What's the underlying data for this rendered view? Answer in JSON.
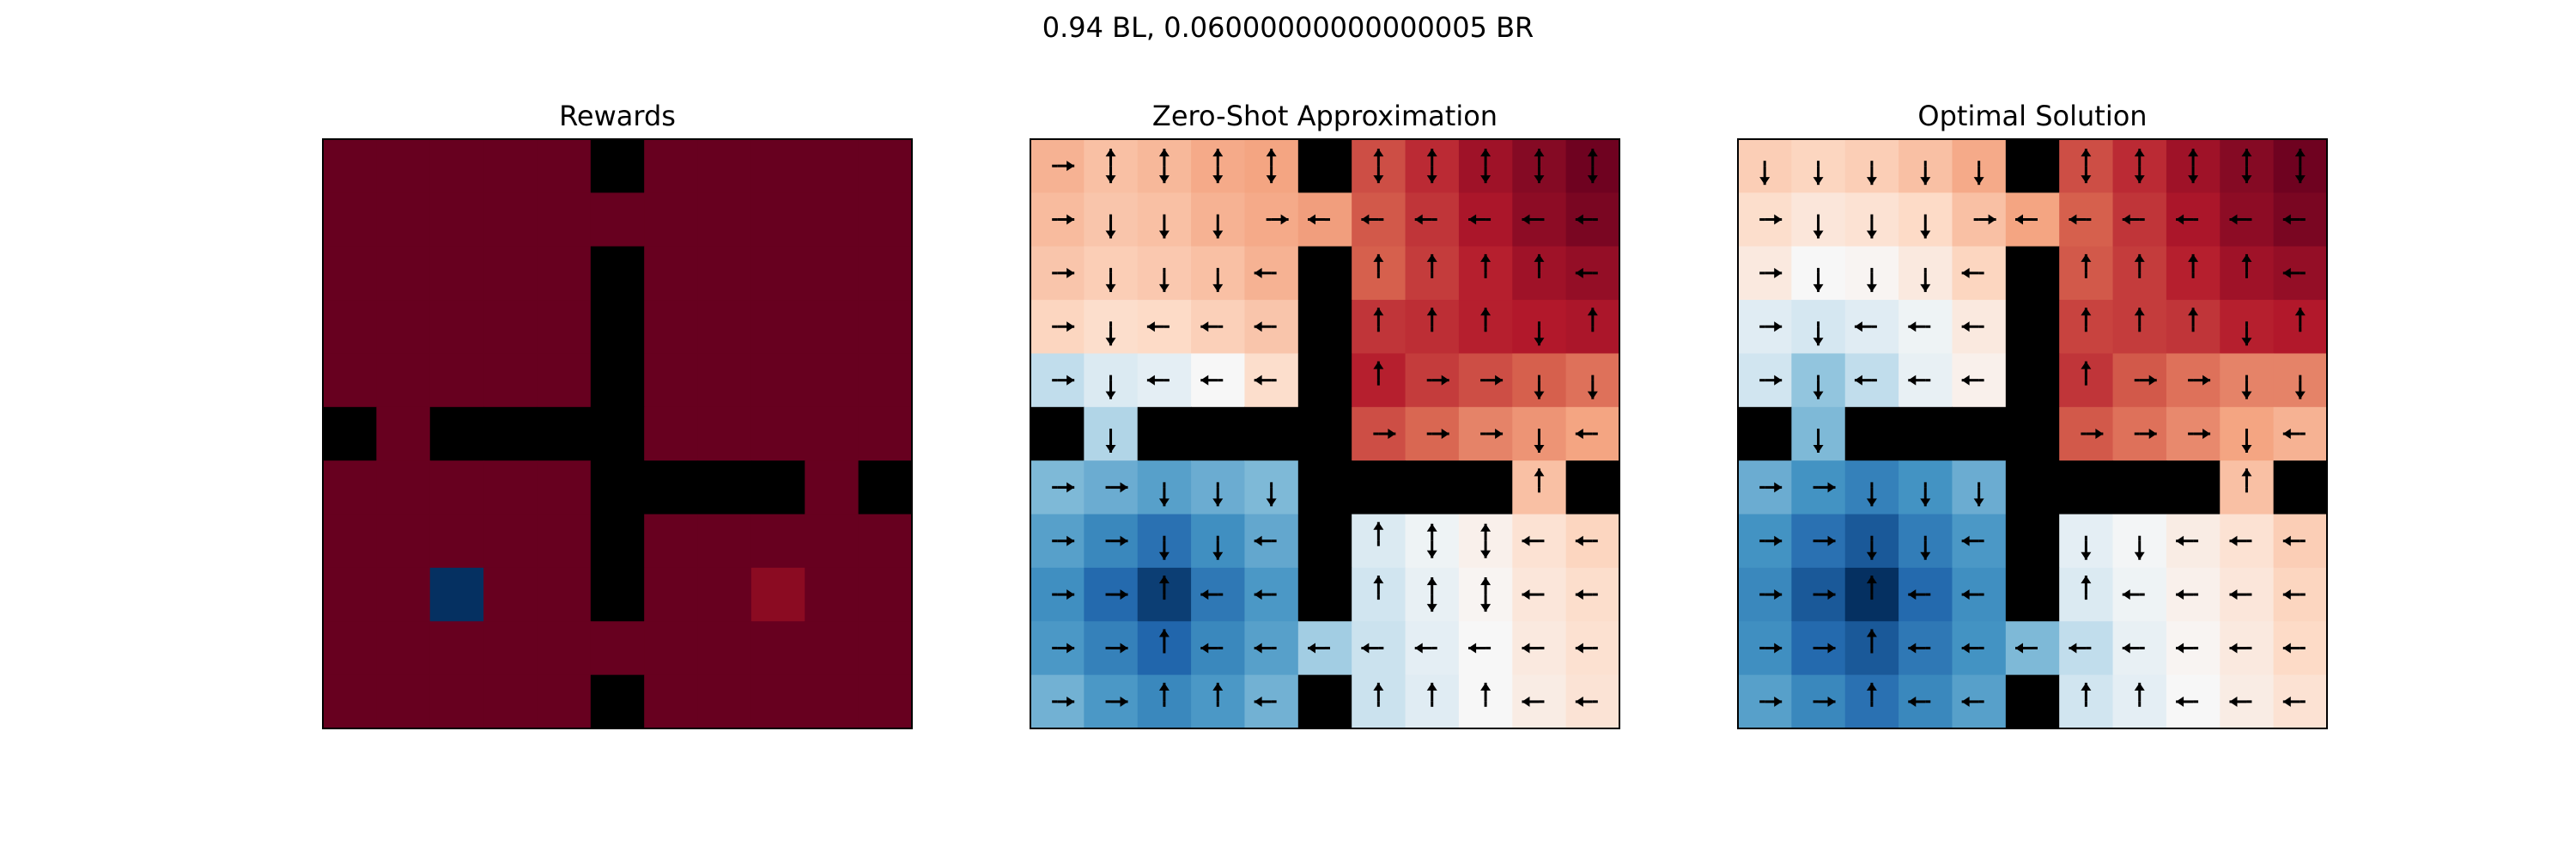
{
  "figure": {
    "suptitle": "0.94 BL, 0.06000000000000005 BR"
  },
  "colors": {
    "wall": "#000000",
    "reward_background": "#67001f",
    "reward_bl": "#053061",
    "reward_br": "#8b0b22",
    "colormap": "RdBu_r"
  },
  "chart_data": [
    {
      "type": "heatmap",
      "title": "Rewards",
      "grid": "11x11",
      "walls": "four-room layout",
      "reward_cells": [
        {
          "row": 8,
          "col": 2,
          "label": "BL",
          "value": 0.94
        },
        {
          "row": 8,
          "col": 8,
          "label": "BR",
          "value": 0.06000000000000005
        }
      ]
    },
    {
      "type": "heatmap",
      "title": "Zero-Shot Approximation",
      "grid": "11x11",
      "values": [
        [
          0.35,
          0.3,
          0.33,
          0.38,
          0.4,
          null,
          0.65,
          0.75,
          0.85,
          0.92,
          0.98
        ],
        [
          0.32,
          0.28,
          0.3,
          0.35,
          0.38,
          0.42,
          0.62,
          0.72,
          0.82,
          0.9,
          0.95
        ],
        [
          0.28,
          0.25,
          0.27,
          0.3,
          0.35,
          null,
          0.6,
          0.7,
          0.78,
          0.85,
          0.88
        ],
        [
          0.22,
          0.18,
          0.2,
          0.24,
          0.28,
          null,
          0.72,
          0.74,
          0.78,
          0.8,
          0.82
        ],
        [
          -0.25,
          -0.15,
          -0.1,
          0.0,
          0.18,
          null,
          0.78,
          0.7,
          0.65,
          0.6,
          0.55
        ],
        [
          null,
          -0.3,
          null,
          null,
          null,
          null,
          0.65,
          0.58,
          0.5,
          0.45,
          0.4
        ],
        [
          -0.45,
          -0.5,
          -0.55,
          -0.5,
          -0.45,
          null,
          null,
          null,
          null,
          0.3,
          null
        ],
        [
          -0.55,
          -0.65,
          -0.75,
          -0.62,
          -0.52,
          null,
          -0.15,
          -0.05,
          0.05,
          0.15,
          0.22
        ],
        [
          -0.62,
          -0.78,
          -0.95,
          -0.72,
          -0.58,
          null,
          -0.2,
          -0.08,
          0.02,
          0.12,
          0.18
        ],
        [
          -0.58,
          -0.68,
          -0.8,
          -0.65,
          -0.55,
          -0.35,
          -0.22,
          -0.1,
          0.0,
          0.1,
          0.16
        ],
        [
          -0.48,
          -0.58,
          -0.65,
          -0.58,
          -0.48,
          null,
          -0.22,
          -0.12,
          0.0,
          0.08,
          0.14
        ]
      ],
      "arrows": [
        [
          "e",
          "ns",
          "ns",
          "ns",
          "ns",
          null,
          "ns",
          "ns",
          "ns",
          "ns",
          "ns"
        ],
        [
          "e",
          "s",
          "s",
          "s",
          "e",
          "w",
          "w",
          "w",
          "w",
          "w",
          "w"
        ],
        [
          "e",
          "s",
          "s",
          "s",
          "w",
          null,
          "n",
          "n",
          "n",
          "n",
          "w"
        ],
        [
          "e",
          "s",
          "w",
          "w",
          "w",
          null,
          "n",
          "n",
          "n",
          "s",
          "n"
        ],
        [
          "e",
          "s",
          "w",
          "w",
          "w",
          null,
          "n",
          "e",
          "e",
          "s",
          "s"
        ],
        [
          null,
          "s",
          null,
          null,
          null,
          null,
          "e",
          "e",
          "e",
          "s",
          "w"
        ],
        [
          "e",
          "e",
          "s",
          "s",
          "s",
          null,
          null,
          null,
          null,
          "n",
          null
        ],
        [
          "e",
          "e",
          "s",
          "s",
          "w",
          null,
          "n",
          "ns",
          "ns",
          "w",
          "w"
        ],
        [
          "e",
          "e",
          "n",
          "w",
          "w",
          null,
          "n",
          "ns",
          "ns",
          "w",
          "w"
        ],
        [
          "e",
          "e",
          "n",
          "w",
          "w",
          "w",
          "w",
          "w",
          "w",
          "w",
          "w"
        ],
        [
          "e",
          "e",
          "n",
          "n",
          "w",
          null,
          "n",
          "n",
          "n",
          "w",
          "w"
        ]
      ]
    },
    {
      "type": "heatmap",
      "title": "Optimal Solution",
      "grid": "11x11",
      "values": [
        [
          0.25,
          0.22,
          0.25,
          0.3,
          0.38,
          null,
          0.65,
          0.75,
          0.85,
          0.92,
          0.98
        ],
        [
          0.18,
          0.12,
          0.15,
          0.2,
          0.3,
          0.4,
          0.6,
          0.72,
          0.82,
          0.9,
          0.95
        ],
        [
          0.1,
          0.0,
          0.02,
          0.1,
          0.22,
          null,
          0.62,
          0.7,
          0.78,
          0.85,
          0.88
        ],
        [
          -0.12,
          -0.18,
          -0.12,
          -0.05,
          0.1,
          null,
          0.68,
          0.7,
          0.72,
          0.78,
          0.8
        ],
        [
          -0.2,
          -0.4,
          -0.25,
          -0.08,
          0.05,
          null,
          0.72,
          0.62,
          0.55,
          0.5,
          0.5
        ],
        [
          null,
          -0.45,
          null,
          null,
          null,
          null,
          0.62,
          0.55,
          0.48,
          0.4,
          0.35
        ],
        [
          -0.5,
          -0.6,
          -0.68,
          -0.6,
          -0.5,
          null,
          null,
          null,
          null,
          0.3,
          null
        ],
        [
          -0.6,
          -0.75,
          -0.85,
          -0.7,
          -0.58,
          null,
          -0.1,
          -0.02,
          0.08,
          0.15,
          0.25
        ],
        [
          -0.65,
          -0.85,
          -1.0,
          -0.78,
          -0.62,
          null,
          -0.15,
          -0.05,
          0.05,
          0.12,
          0.22
        ],
        [
          -0.62,
          -0.78,
          -0.85,
          -0.72,
          -0.6,
          -0.45,
          -0.25,
          -0.08,
          0.02,
          0.1,
          0.2
        ],
        [
          -0.55,
          -0.65,
          -0.75,
          -0.65,
          -0.55,
          null,
          -0.2,
          -0.1,
          0.0,
          0.08,
          0.15
        ]
      ],
      "arrows": [
        [
          "s",
          "s",
          "s",
          "s",
          "s",
          null,
          "ns",
          "ns",
          "ns",
          "ns",
          "ns"
        ],
        [
          "e",
          "s",
          "s",
          "s",
          "e",
          "w",
          "w",
          "w",
          "w",
          "w",
          "w"
        ],
        [
          "e",
          "s",
          "s",
          "s",
          "w",
          null,
          "n",
          "n",
          "n",
          "n",
          "w"
        ],
        [
          "e",
          "s",
          "w",
          "w",
          "w",
          null,
          "n",
          "n",
          "n",
          "s",
          "n"
        ],
        [
          "e",
          "s",
          "w",
          "w",
          "w",
          null,
          "n",
          "e",
          "e",
          "s",
          "s"
        ],
        [
          null,
          "s",
          null,
          null,
          null,
          null,
          "e",
          "e",
          "e",
          "s",
          "w"
        ],
        [
          "e",
          "e",
          "s",
          "s",
          "s",
          null,
          null,
          null,
          null,
          "n",
          null
        ],
        [
          "e",
          "e",
          "s",
          "s",
          "w",
          null,
          "s",
          "s",
          "w",
          "w",
          "w"
        ],
        [
          "e",
          "e",
          "n",
          "w",
          "w",
          null,
          "n",
          "w",
          "w",
          "w",
          "w"
        ],
        [
          "e",
          "e",
          "n",
          "w",
          "w",
          "w",
          "w",
          "w",
          "w",
          "w",
          "w"
        ],
        [
          "e",
          "e",
          "n",
          "w",
          "w",
          null,
          "n",
          "n",
          "w",
          "w",
          "w"
        ]
      ]
    }
  ]
}
